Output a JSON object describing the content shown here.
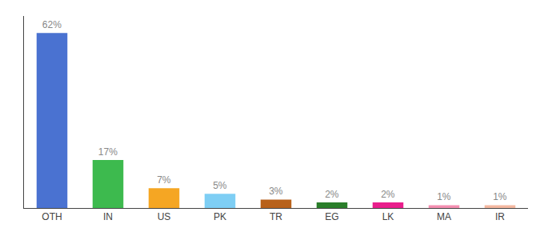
{
  "chart_data": {
    "type": "bar",
    "categories": [
      "OTH",
      "IN",
      "US",
      "PK",
      "TR",
      "EG",
      "LK",
      "MA",
      "IR"
    ],
    "values": [
      62,
      17,
      7,
      5,
      3,
      2,
      2,
      1,
      1
    ],
    "value_labels": [
      "62%",
      "17%",
      "7%",
      "5%",
      "3%",
      "2%",
      "2%",
      "1%",
      "1%"
    ],
    "colors": [
      "#4a72d1",
      "#3dba4e",
      "#f5a623",
      "#7ecef4",
      "#b8611a",
      "#2a7e2a",
      "#e91e8c",
      "#f48fb1",
      "#f4b8a0"
    ],
    "ylim": [
      0,
      68
    ],
    "grid": false,
    "data_labels": true,
    "tick_labels": "x"
  }
}
